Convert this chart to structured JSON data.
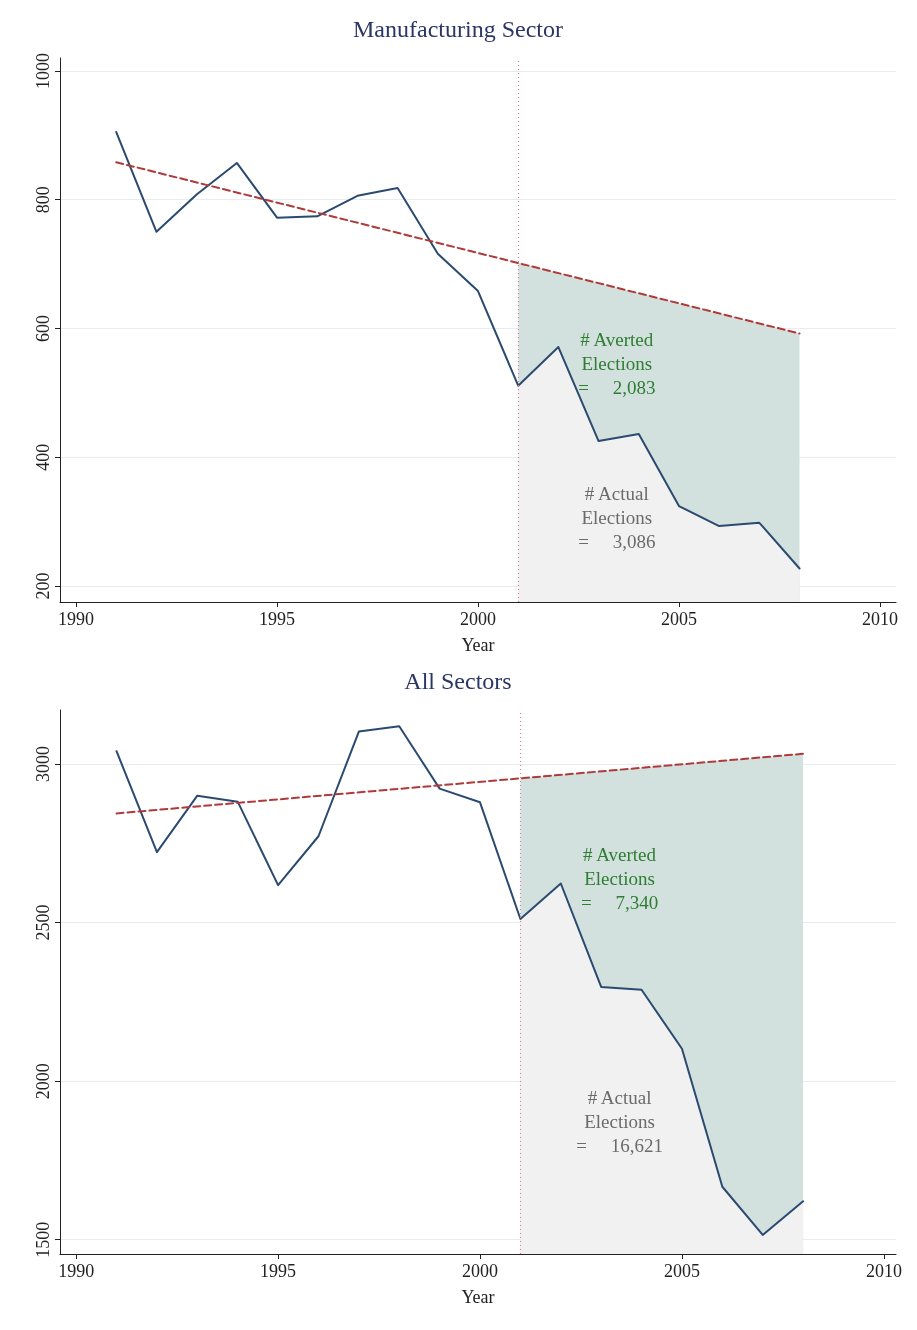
{
  "chart_data": [
    {
      "type": "line",
      "title": "Manufacturing Sector",
      "xlabel": "Year",
      "xlim": [
        1989.6,
        2010.4
      ],
      "xticks": [
        1990,
        1995,
        2000,
        2005,
        2010
      ],
      "ylim": [
        175,
        1020
      ],
      "yticks": [
        200,
        400,
        600,
        800,
        1000
      ],
      "grid": "y",
      "marker": "none",
      "series": [
        {
          "type": "area",
          "color": "#d3e1de",
          "x": [
            2001,
            2002,
            2003,
            2004,
            2005,
            2006,
            2007,
            2008
          ],
          "values": [
            702,
            686,
            670,
            655,
            639,
            623,
            608,
            592
          ]
        },
        {
          "type": "area",
          "color": "#f1f1f1",
          "x": [
            2001,
            2002,
            2003,
            2004,
            2005,
            2006,
            2007,
            2008
          ],
          "values": [
            511,
            571,
            425,
            436,
            324,
            293,
            298,
            227
          ]
        },
        {
          "color": "#2b4a70",
          "line_style": "solid",
          "x": [
            1991,
            1992,
            1993,
            1994,
            1995,
            1996,
            1997,
            1998,
            1999,
            2000,
            2001,
            2002,
            2003,
            2004,
            2005,
            2006,
            2007,
            2008
          ],
          "values": [
            905,
            750,
            808,
            857,
            772,
            774,
            806,
            818,
            716,
            658,
            511,
            571,
            425,
            436,
            324,
            293,
            298,
            227
          ]
        },
        {
          "color": "#b03a3a",
          "line_style": "dashed",
          "x": [
            1991,
            2008
          ],
          "values": [
            858,
            592
          ]
        }
      ],
      "ref_lines": [
        {
          "axis": "x",
          "value": 2001,
          "color": "#e07a95",
          "line_style": "dotted"
        }
      ],
      "annotations": [
        "# Averted\nElections\n=     2,083",
        "# Actual\nElections\n=     3,086"
      ]
    },
    {
      "type": "line",
      "title": "All Sectors",
      "xlabel": "Year",
      "xlim": [
        1989.6,
        2010.3
      ],
      "xticks": [
        1990,
        1995,
        2000,
        2005,
        2010
      ],
      "ylim": [
        1455,
        3170
      ],
      "yticks": [
        1500,
        2000,
        2500,
        3000
      ],
      "grid": "y",
      "marker": "none",
      "series": [
        {
          "type": "area",
          "color": "#d3e1de",
          "x": [
            2001,
            2002,
            2003,
            2004,
            2005,
            2006,
            2007,
            2008
          ],
          "values": [
            2955,
            2966,
            2977,
            2988,
            2999,
            3010,
            3021,
            3032
          ]
        },
        {
          "type": "area",
          "color": "#f1f1f1",
          "x": [
            2001,
            2002,
            2003,
            2004,
            2005,
            2006,
            2007,
            2008
          ],
          "values": [
            2511,
            2623,
            2297,
            2288,
            2102,
            1667,
            1515,
            1621
          ]
        },
        {
          "color": "#2b4a70",
          "line_style": "solid",
          "x": [
            1991,
            1992,
            1993,
            1994,
            1995,
            1996,
            1997,
            1998,
            1999,
            2000,
            2001,
            2002,
            2003,
            2004,
            2005,
            2006,
            2007,
            2008
          ],
          "values": [
            3040,
            2722,
            2900,
            2881,
            2618,
            2772,
            3102,
            3119,
            2922,
            2879,
            2511,
            2623,
            2297,
            2288,
            2102,
            1667,
            1515,
            1621
          ]
        },
        {
          "color": "#b03a3a",
          "line_style": "dashed",
          "x": [
            1991,
            2008
          ],
          "values": [
            2844,
            3032
          ]
        }
      ],
      "ref_lines": [
        {
          "axis": "x",
          "value": 2001,
          "color": "#e07a95",
          "line_style": "dotted"
        }
      ],
      "annotations": [
        "# Averted\nElections\n=     7,340",
        "# Actual\nElections\n=     16,621"
      ]
    }
  ]
}
